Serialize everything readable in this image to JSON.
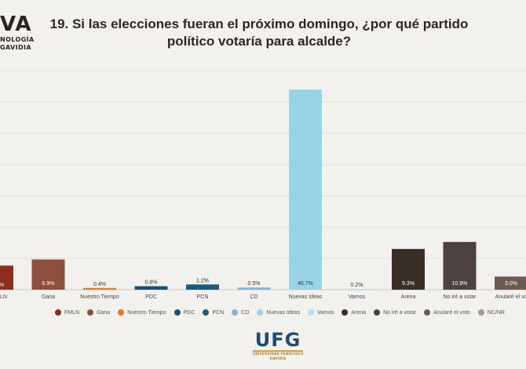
{
  "header": {
    "logo_text": "VA",
    "logo_sub_1": "NOLOGÍA",
    "logo_sub_2": "GAVIDIA",
    "title": "19. Si las elecciones fueran el próximo domingo, ¿por qué partido\npolítico votaría para alcalde?"
  },
  "footer": {
    "logo_text": "UFG",
    "logo_sub": "UNIVERSIDAD FRANCISCO GAVIDIA"
  },
  "chart_data": {
    "type": "bar",
    "categories": [
      "FMLN",
      "Gana",
      "Nuestro Tiempo",
      "PDC",
      "PCN",
      "CD",
      "Nuevas Ideas",
      "Vamos",
      "Arena",
      "No iré a votar",
      "Anularé el voto",
      "NC/NR"
    ],
    "values": [
      5.5,
      6.9,
      0.4,
      0.8,
      1.2,
      0.5,
      45.7,
      0.2,
      9.3,
      10.9,
      3.0,
      null
    ],
    "data_labels": [
      "%",
      "6.9%",
      "0.4%",
      "0.8%",
      "1.2%",
      "0.5%",
      "45.7%",
      "0.2%",
      "9.3%",
      "10.9%",
      "3.0%",
      ""
    ],
    "tick_labels": [
      "LN",
      "Gana",
      "Nuestro Tiempo",
      "PDC",
      "PCN",
      "CD",
      "Nuevas Ideas",
      "Vamos",
      "Arena",
      "No iré a votar",
      "Anularé el vo"
    ],
    "colors": [
      "#8b2f1c",
      "#8e4f3e",
      "#e07b2c",
      "#1f4d6e",
      "#1c5b80",
      "#7ab7dd",
      "#99d3e6",
      "#b9dfec",
      "#3a2f28",
      "#4c4340",
      "#6f5a53",
      "#a29a93"
    ],
    "ylim": [
      0,
      50
    ],
    "grid": true,
    "legend": {
      "position": "bottom",
      "labels": [
        "FMLN",
        "Gana",
        "Nuestro Tiempo",
        "PDC",
        "PCN",
        "CD",
        "Nuevas Ideas",
        "Vamos",
        "Arena",
        "No iré a votar",
        "Anularé el voto",
        "NC/NR"
      ]
    }
  }
}
